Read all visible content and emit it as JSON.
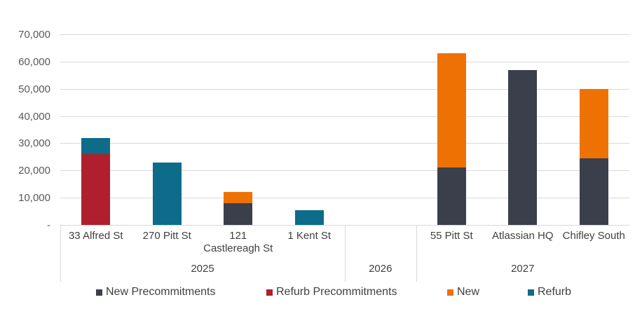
{
  "chart_data": {
    "type": "bar",
    "stacked": true,
    "title": "",
    "xlabel": "",
    "ylabel": "",
    "ylim": [
      0,
      70000
    ],
    "ytick_interval": 10000,
    "ytick_labels": [
      "-",
      "10,000",
      "20,000",
      "30,000",
      "40,000",
      "50,000",
      "60,000",
      "70,000"
    ],
    "grid": true,
    "legend_position": "bottom",
    "series": [
      {
        "name": "New Precommitments",
        "color": "#3A3F4B"
      },
      {
        "name": "Refurb Precommitments",
        "color": "#B01F2E"
      },
      {
        "name": "New",
        "color": "#EE7203"
      },
      {
        "name": "Refurb",
        "color": "#0C6C8A"
      }
    ],
    "groups": [
      {
        "label": "2025",
        "categories": [
          {
            "label": "33 Alfred St",
            "segments": [
              {
                "series": "Refurb Precommitments",
                "value": 26000
              },
              {
                "series": "Refurb",
                "value": 6000
              }
            ]
          },
          {
            "label": "270 Pitt St",
            "segments": [
              {
                "series": "Refurb",
                "value": 23000
              }
            ]
          },
          {
            "label": "121 Castlereagh St",
            "segments": [
              {
                "series": "New Precommitments",
                "value": 8000
              },
              {
                "series": "New",
                "value": 4000
              }
            ]
          },
          {
            "label": "1 Kent St",
            "segments": [
              {
                "series": "Refurb",
                "value": 5500
              }
            ]
          }
        ]
      },
      {
        "label": "2026",
        "categories": []
      },
      {
        "label": "2027",
        "categories": [
          {
            "label": "55 Pitt St",
            "segments": [
              {
                "series": "New Precommitments",
                "value": 21000
              },
              {
                "series": "New",
                "value": 42000
              }
            ]
          },
          {
            "label": "Atlassian HQ",
            "segments": [
              {
                "series": "New Precommitments",
                "value": 57000
              }
            ]
          },
          {
            "label": "Chifley South",
            "segments": [
              {
                "series": "New Precommitments",
                "value": 24500
              },
              {
                "series": "New",
                "value": 25500
              }
            ]
          }
        ]
      }
    ],
    "colors": {
      "background": "#FFFFFF",
      "gridline": "#D9D9D9",
      "axis_line": "#D9D9D9",
      "tick_label": "#595959",
      "category_label": "#404040",
      "legend_label": "#404040"
    }
  }
}
